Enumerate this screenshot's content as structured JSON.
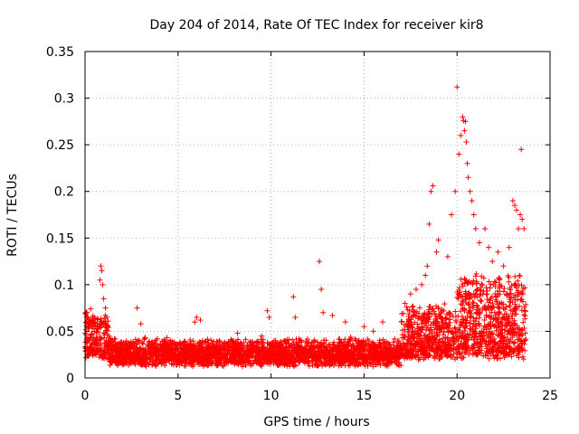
{
  "chart_data": {
    "type": "scatter",
    "title": "Day 204 of 2014, Rate Of TEC Index for receiver kir8",
    "xlabel": "GPS time / hours",
    "ylabel": "ROTI / TECUs",
    "xlim": [
      0,
      25
    ],
    "ylim": [
      0,
      0.35
    ],
    "x_ticks": [
      0,
      5,
      10,
      15,
      20,
      25
    ],
    "x_tick_labels": [
      "0",
      "5",
      "10",
      "15",
      "20",
      "25"
    ],
    "y_ticks": [
      0,
      0.05,
      0.1,
      0.15,
      0.2,
      0.25,
      0.3,
      0.35
    ],
    "y_tick_labels": [
      "0",
      "0.05",
      "0.1",
      "0.15",
      "0.2",
      "0.25",
      "0.3",
      "0.35"
    ],
    "grid": true,
    "marker": "+",
    "color": "#ff0000",
    "series": [
      {
        "name": "ROTI",
        "points": [
          [
            0.1,
            0.07
          ],
          [
            0.3,
            0.074
          ],
          [
            0.5,
            0.065
          ],
          [
            0.8,
            0.105
          ],
          [
            0.85,
            0.12
          ],
          [
            0.9,
            0.115
          ],
          [
            0.95,
            0.1
          ],
          [
            1.0,
            0.085
          ],
          [
            1.1,
            0.075
          ],
          [
            2.8,
            0.075
          ],
          [
            3.0,
            0.058
          ],
          [
            5.9,
            0.06
          ],
          [
            6.0,
            0.065
          ],
          [
            6.2,
            0.062
          ],
          [
            8.2,
            0.048
          ],
          [
            9.5,
            0.045
          ],
          [
            9.8,
            0.072
          ],
          [
            9.9,
            0.065
          ],
          [
            11.2,
            0.087
          ],
          [
            11.3,
            0.065
          ],
          [
            12.6,
            0.125
          ],
          [
            12.7,
            0.095
          ],
          [
            12.8,
            0.07
          ],
          [
            13.3,
            0.067
          ],
          [
            14.0,
            0.06
          ],
          [
            15.0,
            0.055
          ],
          [
            15.5,
            0.05
          ],
          [
            16.0,
            0.06
          ],
          [
            17.2,
            0.08
          ],
          [
            17.5,
            0.09
          ],
          [
            17.8,
            0.095
          ],
          [
            18.1,
            0.1
          ],
          [
            18.3,
            0.11
          ],
          [
            18.4,
            0.12
          ],
          [
            18.5,
            0.165
          ],
          [
            18.6,
            0.2
          ],
          [
            18.7,
            0.206
          ],
          [
            18.9,
            0.135
          ],
          [
            19.0,
            0.148
          ],
          [
            19.5,
            0.13
          ],
          [
            19.7,
            0.175
          ],
          [
            19.9,
            0.2
          ],
          [
            20.0,
            0.312
          ],
          [
            20.1,
            0.24
          ],
          [
            20.2,
            0.26
          ],
          [
            20.3,
            0.28
          ],
          [
            20.35,
            0.276
          ],
          [
            20.4,
            0.265
          ],
          [
            20.45,
            0.275
          ],
          [
            20.5,
            0.253
          ],
          [
            20.55,
            0.23
          ],
          [
            20.6,
            0.215
          ],
          [
            20.7,
            0.2
          ],
          [
            20.8,
            0.19
          ],
          [
            20.9,
            0.175
          ],
          [
            21.0,
            0.16
          ],
          [
            21.2,
            0.145
          ],
          [
            21.5,
            0.16
          ],
          [
            21.7,
            0.14
          ],
          [
            21.9,
            0.125
          ],
          [
            22.2,
            0.135
          ],
          [
            22.5,
            0.12
          ],
          [
            22.8,
            0.14
          ],
          [
            23.0,
            0.19
          ],
          [
            23.1,
            0.185
          ],
          [
            23.2,
            0.18
          ],
          [
            23.3,
            0.16
          ],
          [
            23.4,
            0.175
          ],
          [
            23.45,
            0.245
          ],
          [
            23.5,
            0.17
          ],
          [
            23.6,
            0.16
          ]
        ]
      }
    ]
  }
}
